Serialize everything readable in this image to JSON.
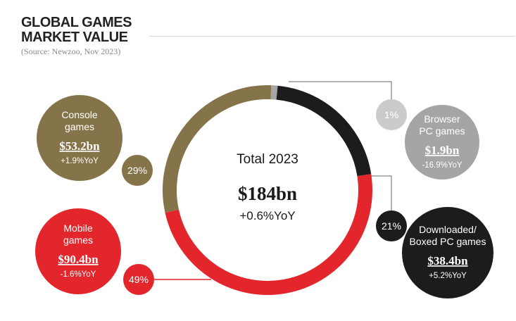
{
  "title": {
    "line1": "GLOBAL GAMES",
    "line2": "MARKET VALUE",
    "source": "(Source: Newzoo, Nov 2023)"
  },
  "colors": {
    "console": "#857449",
    "browser": "#a5a5a5",
    "downloaded": "#1c1c1c",
    "mobile": "#e3262c",
    "connector": "#9a9a9a"
  },
  "chart_data": {
    "type": "pie",
    "title": "Global Games Market Value",
    "center": {
      "label": "Total 2023",
      "value": "$184bn",
      "change": "+0.6%YoY"
    },
    "segments": [
      {
        "id": "browser",
        "name_lines": [
          "Browser",
          "PC games"
        ],
        "value_label": "$1.9bn",
        "value": 1.9,
        "change": "-16.9%YoY",
        "share": 1,
        "share_label": "1%"
      },
      {
        "id": "downloaded",
        "name_lines": [
          "Downloaded/",
          "Boxed PC games"
        ],
        "value_label": "$38.4bn",
        "value": 38.4,
        "change": "+5.2%YoY",
        "share": 21,
        "share_label": "21%"
      },
      {
        "id": "mobile",
        "name_lines": [
          "Mobile",
          "games"
        ],
        "value_label": "$90.4bn",
        "value": 90.4,
        "change": "-1.6%YoY",
        "share": 49,
        "share_label": "49%"
      },
      {
        "id": "console",
        "name_lines": [
          "Console",
          "games"
        ],
        "value_label": "$53.2bn",
        "value": 53.2,
        "change": "+1.9%YoY",
        "share": 29,
        "share_label": "29%"
      }
    ]
  }
}
